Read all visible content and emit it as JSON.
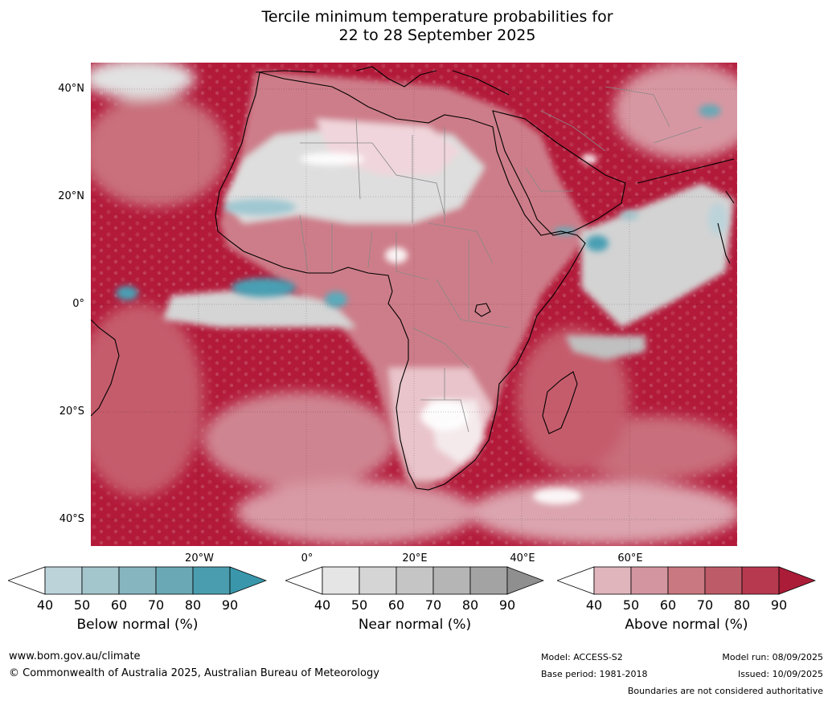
{
  "title_line1": "Tercile minimum temperature probabilities for",
  "title_line2": "22 to 28 September 2025",
  "map": {
    "lat_labels": [
      "40°N",
      "20°N",
      "0°",
      "20°S",
      "40°S"
    ],
    "lon_labels": [
      "20°W",
      "0°",
      "20°E",
      "40°E",
      "60°E"
    ],
    "colors": {
      "ocean_dark": "#b31a3a",
      "land_light": "#e6b7c0",
      "near_grey": "#d8d8d8",
      "below_blue": "#4a9fb3",
      "coast": "#000000",
      "border": "#888888"
    }
  },
  "colorbars": [
    {
      "title": "Below normal (%)",
      "ticks": [
        "40",
        "50",
        "60",
        "70",
        "80",
        "90"
      ],
      "colors": [
        "#ffffff",
        "#bcd3da",
        "#a3c5cc",
        "#86b5c0",
        "#6aa8b5",
        "#4a9dae",
        "#3a97ab"
      ]
    },
    {
      "title": "Near normal (%)",
      "ticks": [
        "40",
        "50",
        "60",
        "70",
        "80",
        "90"
      ],
      "colors": [
        "#ffffff",
        "#e5e5e5",
        "#d5d5d5",
        "#c5c5c5",
        "#b5b5b5",
        "#a3a3a3",
        "#8f8f8f"
      ]
    },
    {
      "title": "Above normal (%)",
      "ticks": [
        "40",
        "50",
        "60",
        "70",
        "80",
        "90"
      ],
      "colors": [
        "#ffffff",
        "#e0b5bc",
        "#d3959f",
        "#c97780",
        "#be5b68",
        "#b7394f",
        "#ab1c38"
      ]
    }
  ],
  "footer": {
    "url": "www.bom.gov.au/climate",
    "copyright": "© Commonwealth of Australia 2025, Australian Bureau of Meteorology",
    "model": "Model: ACCESS-S2",
    "base_period": "Base period: 1981-2018",
    "model_run": "Model run: 08/09/2025",
    "issued": "Issued: 10/09/2025",
    "disclaimer": "Boundaries are not considered authoritative"
  }
}
